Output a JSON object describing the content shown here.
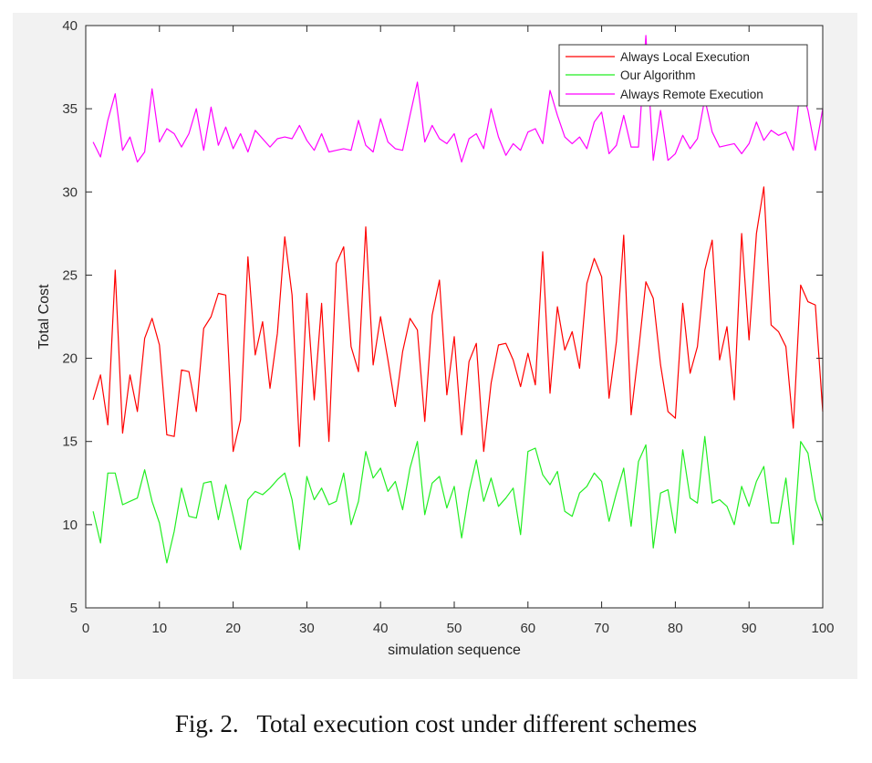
{
  "caption": "Fig. 2.   Total execution cost under different schemes",
  "chart_data": {
    "type": "line",
    "xlabel": "simulation sequence",
    "ylabel": "Total Cost",
    "xlim": [
      0,
      100
    ],
    "ylim": [
      5,
      40
    ],
    "xticks": [
      0,
      10,
      20,
      30,
      40,
      50,
      60,
      70,
      80,
      90,
      100
    ],
    "yticks": [
      5,
      10,
      15,
      20,
      25,
      30,
      35,
      40
    ],
    "grid": false,
    "legend_position": "top-right",
    "x": [
      1,
      2,
      3,
      4,
      5,
      6,
      7,
      8,
      9,
      10,
      11,
      12,
      13,
      14,
      15,
      16,
      17,
      18,
      19,
      20,
      21,
      22,
      23,
      24,
      25,
      26,
      27,
      28,
      29,
      30,
      31,
      32,
      33,
      34,
      35,
      36,
      37,
      38,
      39,
      40,
      41,
      42,
      43,
      44,
      45,
      46,
      47,
      48,
      49,
      50,
      51,
      52,
      53,
      54,
      55,
      56,
      57,
      58,
      59,
      60,
      61,
      62,
      63,
      64,
      65,
      66,
      67,
      68,
      69,
      70,
      71,
      72,
      73,
      74,
      75,
      76,
      77,
      78,
      79,
      80,
      81,
      82,
      83,
      84,
      85,
      86,
      87,
      88,
      89,
      90,
      91,
      92,
      93,
      94,
      95,
      96,
      97,
      98,
      99,
      100
    ],
    "series": [
      {
        "name": "Always Local Execution",
        "color": "#ff0000",
        "values": [
          17.5,
          19.0,
          16.0,
          25.3,
          15.5,
          19.0,
          16.8,
          21.2,
          22.4,
          20.8,
          15.4,
          15.3,
          19.3,
          19.2,
          16.8,
          21.8,
          22.5,
          23.9,
          23.8,
          14.4,
          16.3,
          26.1,
          20.2,
          22.2,
          18.2,
          21.5,
          27.3,
          23.8,
          14.7,
          23.9,
          17.5,
          23.3,
          15.0,
          25.7,
          26.7,
          20.7,
          19.2,
          27.9,
          19.6,
          22.5,
          19.9,
          17.1,
          20.4,
          22.4,
          21.7,
          16.2,
          22.6,
          24.7,
          17.8,
          21.3,
          15.4,
          19.8,
          20.9,
          14.4,
          18.5,
          20.8,
          20.9,
          19.9,
          18.3,
          20.3,
          18.4,
          26.4,
          17.9,
          23.1,
          20.5,
          21.6,
          19.4,
          24.5,
          26.0,
          24.9,
          17.6,
          21.0,
          27.4,
          16.6,
          20.4,
          24.6,
          23.6,
          19.6,
          16.8,
          16.4,
          23.3,
          19.1,
          20.7,
          25.3,
          27.1,
          19.9,
          21.9,
          17.5,
          27.5,
          21.1,
          27.5,
          30.3,
          22.0,
          21.6,
          20.7,
          15.8,
          24.4,
          23.4,
          23.2,
          16.8
        ]
      },
      {
        "name": "Our Algorithm",
        "color": "#22ee22",
        "values": [
          10.8,
          8.9,
          13.1,
          13.1,
          11.2,
          11.4,
          11.6,
          13.3,
          11.4,
          10.1,
          7.7,
          9.6,
          12.2,
          10.5,
          10.4,
          12.5,
          12.6,
          10.3,
          12.4,
          10.5,
          8.5,
          11.5,
          12.0,
          11.8,
          12.2,
          12.7,
          13.1,
          11.5,
          8.5,
          12.9,
          11.5,
          12.2,
          11.2,
          11.4,
          13.1,
          10.0,
          11.4,
          14.4,
          12.8,
          13.4,
          12.0,
          12.6,
          10.9,
          13.4,
          15.0,
          10.6,
          12.5,
          12.9,
          11.0,
          12.3,
          9.2,
          12.0,
          13.9,
          11.4,
          12.8,
          11.1,
          11.6,
          12.2,
          9.4,
          14.4,
          14.6,
          13.0,
          12.4,
          13.2,
          10.8,
          10.5,
          11.9,
          12.3,
          13.1,
          12.6,
          10.2,
          11.9,
          13.4,
          9.9,
          13.8,
          14.8,
          8.6,
          11.9,
          12.1,
          9.5,
          14.5,
          11.6,
          11.3,
          15.3,
          11.3,
          11.5,
          11.1,
          10.0,
          12.3,
          11.1,
          12.6,
          13.5,
          10.1,
          10.1,
          12.8,
          8.8,
          15.0,
          14.3,
          11.5,
          10.2
        ]
      },
      {
        "name": "Always Remote Execution",
        "color": "#ff00ff",
        "values": [
          33.0,
          32.1,
          34.3,
          35.9,
          32.5,
          33.3,
          31.8,
          32.4,
          36.2,
          33.0,
          33.8,
          33.5,
          32.7,
          33.5,
          35.0,
          32.5,
          35.1,
          32.8,
          33.9,
          32.6,
          33.5,
          32.4,
          33.7,
          33.2,
          32.7,
          33.2,
          33.3,
          33.2,
          34.0,
          33.1,
          32.5,
          33.5,
          32.4,
          32.5,
          32.6,
          32.5,
          34.3,
          32.8,
          32.4,
          34.4,
          33.0,
          32.6,
          32.5,
          34.6,
          36.6,
          33.0,
          34.0,
          33.2,
          32.9,
          33.5,
          31.8,
          33.2,
          33.5,
          32.6,
          35.0,
          33.3,
          32.2,
          32.9,
          32.5,
          33.6,
          33.8,
          32.9,
          36.1,
          34.6,
          33.3,
          32.9,
          33.3,
          32.6,
          34.2,
          34.8,
          32.3,
          32.8,
          34.6,
          32.7,
          32.7,
          39.4,
          31.9,
          34.9,
          31.9,
          32.3,
          33.4,
          32.6,
          33.2,
          35.6,
          33.6,
          32.7,
          32.8,
          32.9,
          32.3,
          32.9,
          34.2,
          33.1,
          33.7,
          33.4,
          33.6,
          32.5,
          36.4,
          34.9,
          32.5,
          35.0
        ]
      }
    ]
  }
}
